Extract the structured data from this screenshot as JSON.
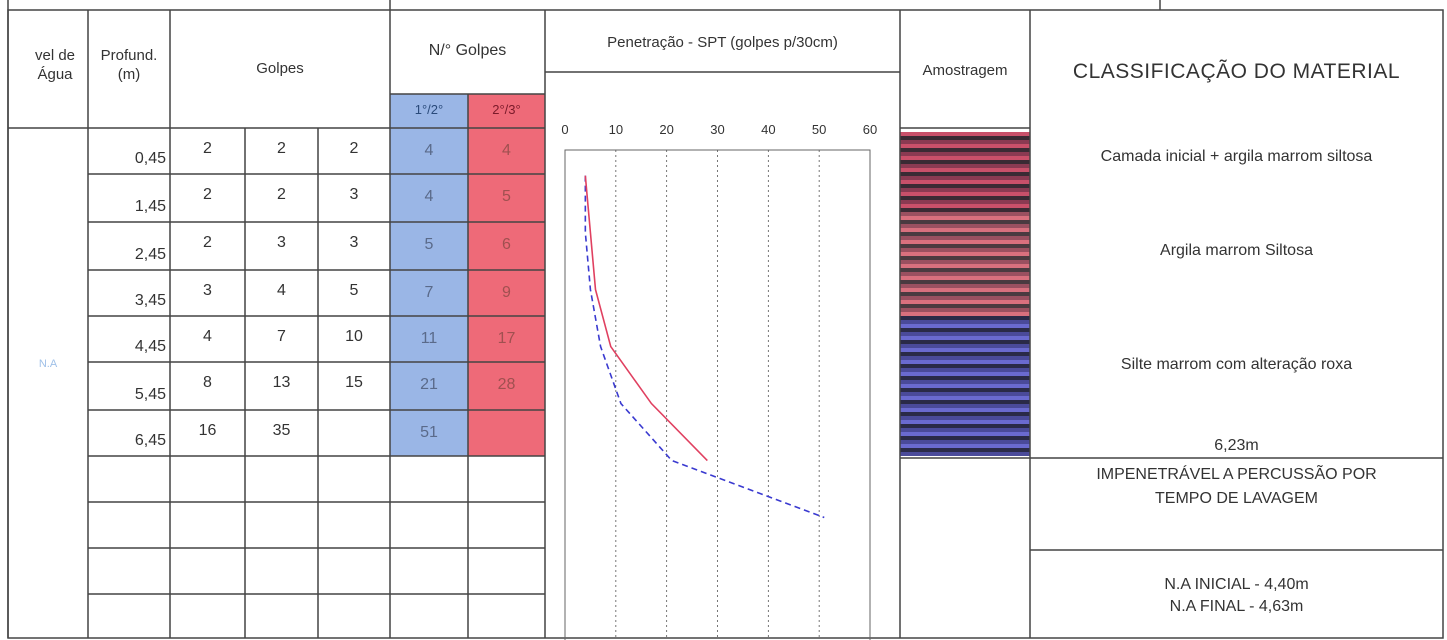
{
  "header": {
    "nivel_de_agua": "vel de\nÁgua",
    "profund": "Profund.\n(m)",
    "golpes": "Golpes",
    "n_golpes": "N/° Golpes",
    "sub_1_2": "1°/2°",
    "sub_2_3": "2°/3°",
    "penetracao": "Penetração - SPT (golpes p/30cm)",
    "amostragem": "Amostragem",
    "classificacao": "CLASSIFICAÇÃO DO MATERIAL"
  },
  "rows": [
    {
      "depth": "0,45",
      "g1": "2",
      "g2": "2",
      "g3": "2",
      "n12": "4",
      "n23": "4"
    },
    {
      "depth": "1,45",
      "g1": "2",
      "g2": "2",
      "g3": "3",
      "n12": "4",
      "n23": "5"
    },
    {
      "depth": "2,45",
      "g1": "2",
      "g2": "3",
      "g3": "3",
      "n12": "5",
      "n23": "6"
    },
    {
      "depth": "3,45",
      "g1": "3",
      "g2": "4",
      "g3": "5",
      "n12": "7",
      "n23": "9"
    },
    {
      "depth": "4,45",
      "g1": "4",
      "g2": "7",
      "g3": "10",
      "n12": "11",
      "n23": "17"
    },
    {
      "depth": "5,45",
      "g1": "8",
      "g2": "13",
      "g3": "15",
      "n12": "21",
      "n23": "28"
    },
    {
      "depth": "6,45",
      "g1": "16",
      "g2": "35",
      "g3": "",
      "n12": "51",
      "n23": ""
    }
  ],
  "water_level_label": "N.A",
  "classification": {
    "layer1": "Camada inicial + argila marrom siltosa",
    "layer2": "Argila marrom Siltosa",
    "layer3": "Silte marrom com alteração roxa",
    "depth_end": "6,23m",
    "impenetravel_1": "IMPENETRÁVEL A PERCUSSÃO POR",
    "impenetravel_2": "TEMPO DE LAVAGEM",
    "na_inicial": "N.A INICIAL - 4,40m",
    "na_final": "N.A FINAL - 4,63m"
  },
  "colors": {
    "blue_cell": "#9ab6e6",
    "red_cell": "#ee6a78",
    "line_red": "#e04060",
    "line_blue": "#3a3ad0",
    "grid": "#444444"
  },
  "chart_data": {
    "type": "line",
    "title": "Penetração - SPT (golpes p/30cm)",
    "x_ticks": [
      "0",
      "10",
      "20",
      "30",
      "40",
      "50",
      "60"
    ],
    "xlim": [
      0,
      60
    ],
    "grid": true,
    "series": [
      {
        "name": "1°/2°",
        "style": "dashed",
        "color": "#3a3ad0",
        "x": [
          4,
          4,
          5,
          7,
          11,
          21,
          51
        ],
        "y": [
          0.45,
          1.45,
          2.45,
          3.45,
          4.45,
          5.45,
          6.45
        ]
      },
      {
        "name": "2°/3°",
        "style": "solid",
        "color": "#e04060",
        "x": [
          4,
          5,
          6,
          9,
          17,
          28
        ],
        "y": [
          0.45,
          1.45,
          2.45,
          3.45,
          4.45,
          5.45
        ]
      }
    ]
  }
}
